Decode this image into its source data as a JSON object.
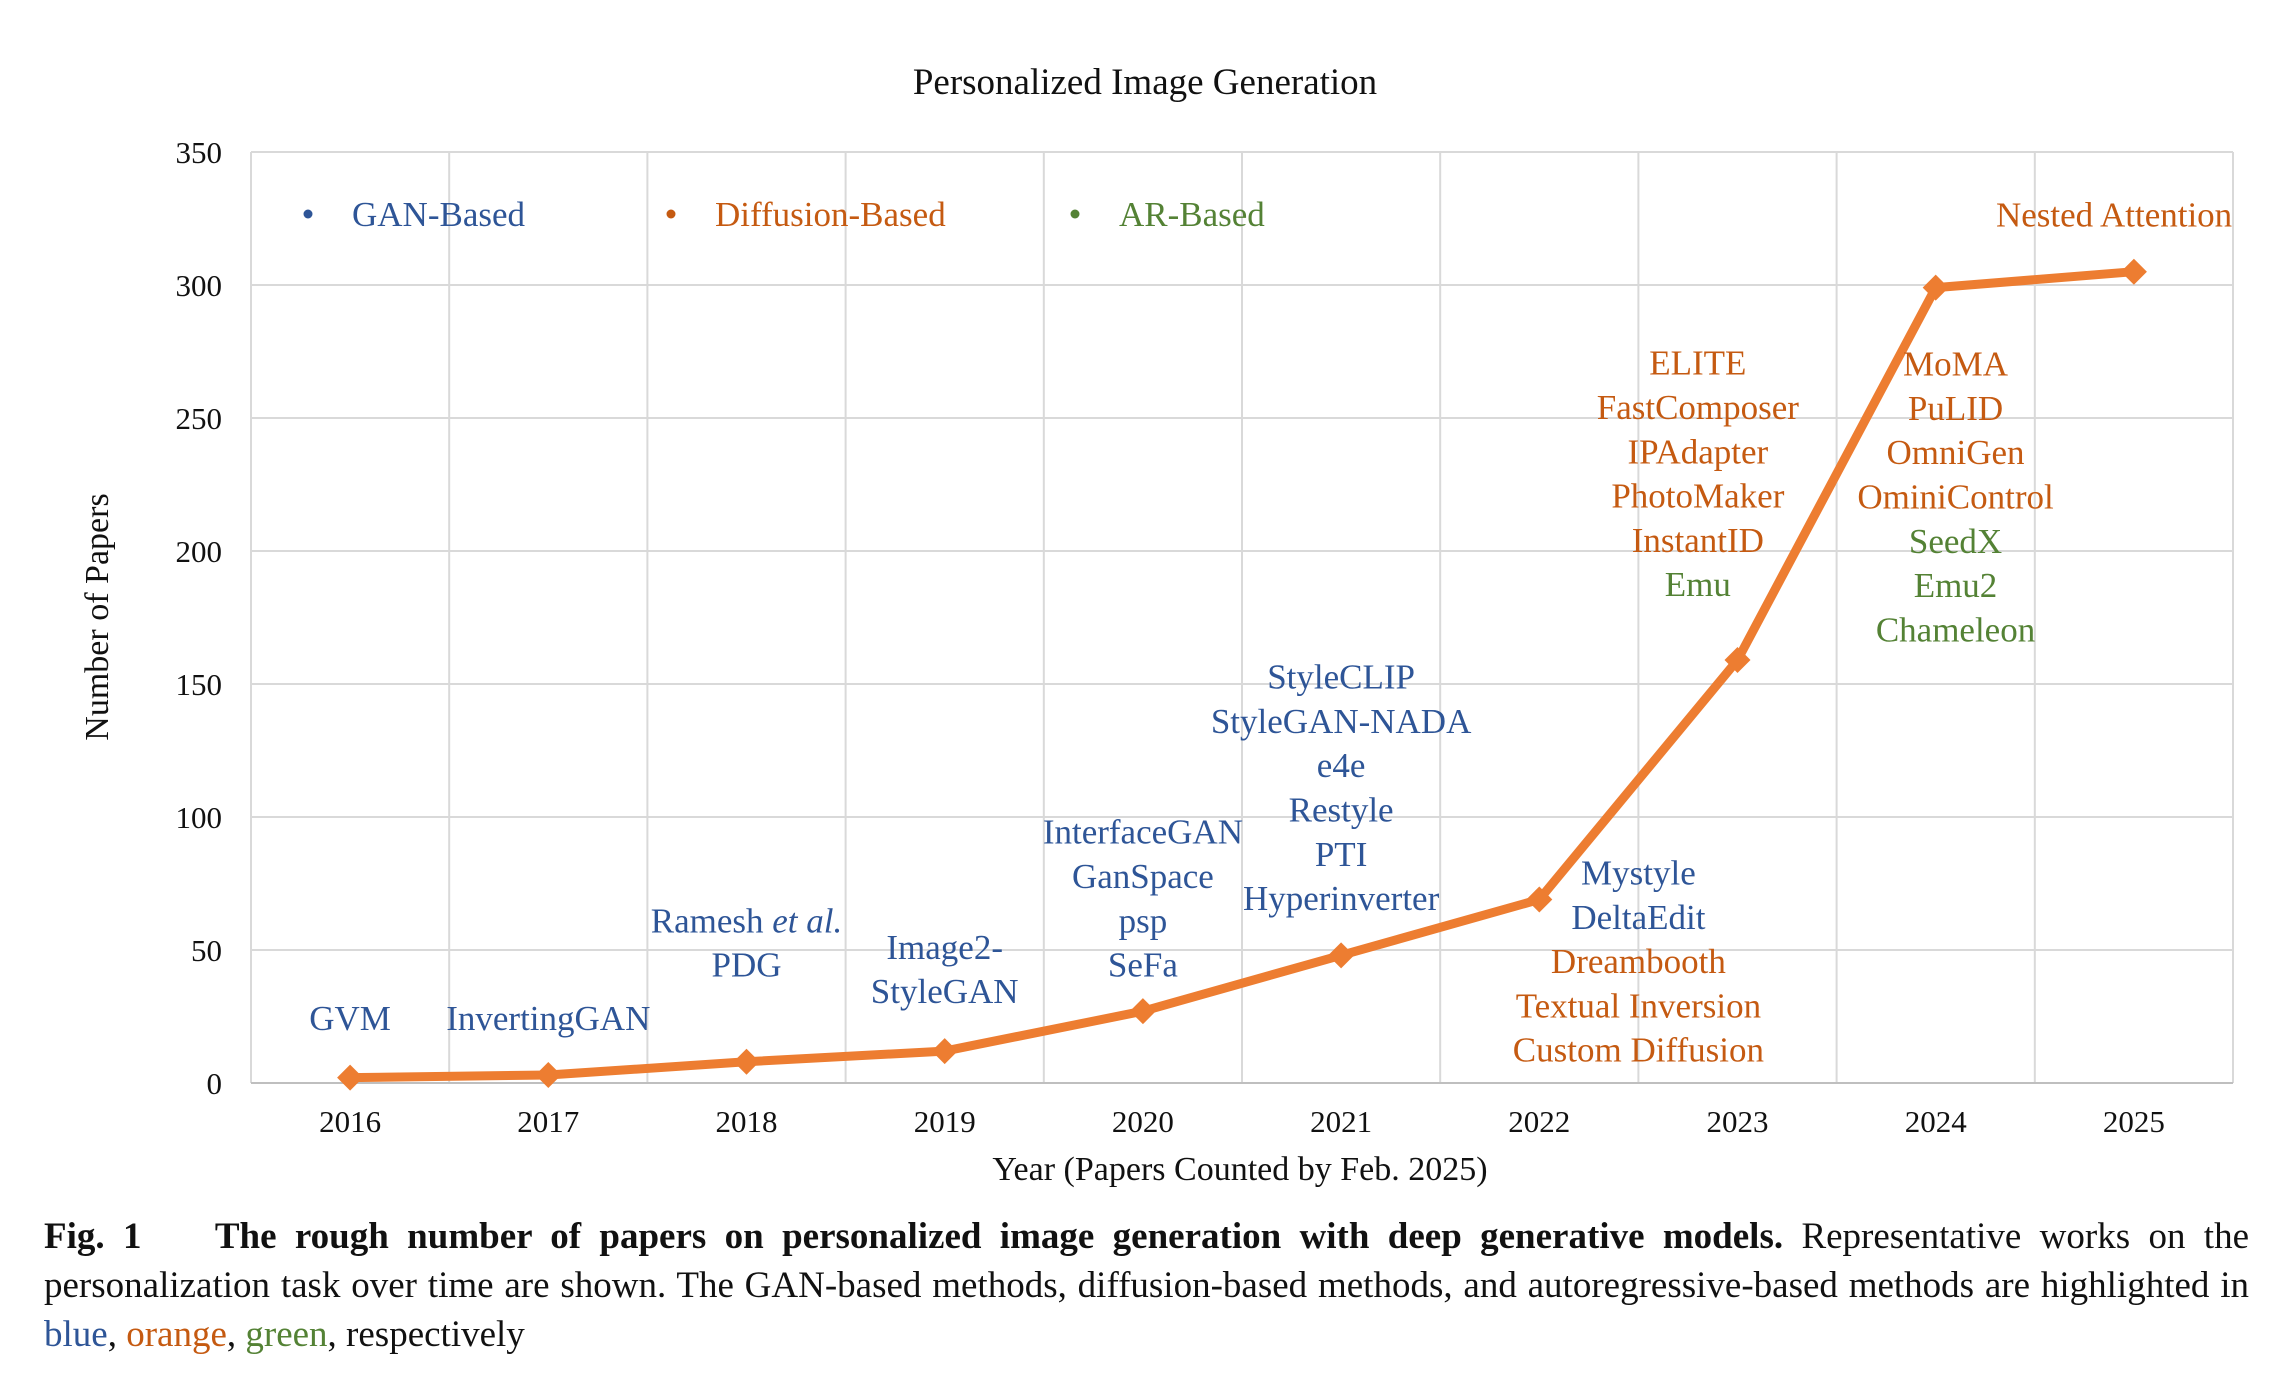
{
  "chart_data": {
    "type": "line",
    "title": "Personalized Image Generation",
    "xlabel": "Year (Papers Counted by Feb. 2025)",
    "ylabel": "Number of Papers",
    "categories": [
      "2016",
      "2017",
      "2018",
      "2019",
      "2020",
      "2021",
      "2022",
      "2023",
      "2024",
      "2025"
    ],
    "values": [
      2,
      3,
      8,
      12,
      27,
      48,
      69,
      159,
      299,
      305
    ],
    "ylim": [
      0,
      350
    ],
    "yticks": [
      0,
      50,
      100,
      150,
      200,
      250,
      300,
      350
    ],
    "grid": true,
    "legend_position": "top-left",
    "legend": [
      {
        "label": "GAN-Based",
        "color": "#2e5597"
      },
      {
        "label": "Diffusion-Based",
        "color": "#c55a11"
      },
      {
        "label": "AR-Based",
        "color": "#548235"
      }
    ],
    "line_color": "#ed7d31",
    "annotations": [
      {
        "year": "2016",
        "level": 20,
        "lines": [
          {
            "text": "GVM",
            "kind": "gan"
          }
        ]
      },
      {
        "year": "2017",
        "level": 20,
        "lines": [
          {
            "text": "InvertingGAN",
            "kind": "gan"
          }
        ]
      },
      {
        "year": "2018",
        "level": 40,
        "lines": [
          {
            "text": "Ramesh ",
            "italic": "et al.",
            "kind": "gan"
          },
          {
            "text": "PDG",
            "kind": "gan"
          }
        ]
      },
      {
        "year": "2019",
        "level": 30,
        "lines": [
          {
            "text": "Image2-",
            "kind": "gan"
          },
          {
            "text": "StyleGAN",
            "kind": "gan"
          }
        ]
      },
      {
        "year": "2020",
        "level": 40,
        "lines": [
          {
            "text": "InterfaceGAN",
            "kind": "gan"
          },
          {
            "text": "GanSpace",
            "kind": "gan"
          },
          {
            "text": "psp",
            "kind": "gan"
          },
          {
            "text": "SeFa",
            "kind": "gan"
          }
        ]
      },
      {
        "year": "2021",
        "level": 65,
        "lines": [
          {
            "text": "StyleCLIP",
            "kind": "gan"
          },
          {
            "text": "StyleGAN-NADA",
            "kind": "gan"
          },
          {
            "text": "e4e",
            "kind": "gan"
          },
          {
            "text": "Restyle",
            "kind": "gan"
          },
          {
            "text": "PTI",
            "kind": "gan"
          },
          {
            "text": "Hyperinverter",
            "kind": "gan"
          }
        ]
      },
      {
        "year": "2022.5",
        "level": 8,
        "lines": [
          {
            "text": "Mystyle",
            "kind": "gan"
          },
          {
            "text": "DeltaEdit",
            "kind": "gan"
          },
          {
            "text": "Dreambooth",
            "kind": "diffusion"
          },
          {
            "text": "Textual Inversion",
            "kind": "diffusion"
          },
          {
            "text": "Custom Diffusion",
            "kind": "diffusion"
          }
        ]
      },
      {
        "year": "2022.8",
        "level": 183,
        "lines": [
          {
            "text": "ELITE",
            "kind": "diffusion"
          },
          {
            "text": "FastComposer",
            "kind": "diffusion"
          },
          {
            "text": "IPAdapter",
            "kind": "diffusion"
          },
          {
            "text": "PhotoMaker",
            "kind": "diffusion"
          },
          {
            "text": "InstantID",
            "kind": "diffusion"
          },
          {
            "text": "Emu",
            "kind": "ar"
          }
        ]
      },
      {
        "year": "2024.1",
        "level": 166,
        "lines": [
          {
            "text": "MoMA",
            "kind": "diffusion"
          },
          {
            "text": "PuLID",
            "kind": "diffusion"
          },
          {
            "text": "OmniGen",
            "kind": "diffusion"
          },
          {
            "text": "OminiControl",
            "kind": "diffusion"
          },
          {
            "text": "SeedX",
            "kind": "ar"
          },
          {
            "text": "Emu2",
            "kind": "ar"
          },
          {
            "text": "Chameleon",
            "kind": "ar"
          }
        ]
      },
      {
        "year": "2024.9",
        "level": 322,
        "lines": [
          {
            "text": "Nested Attention",
            "kind": "diffusion"
          }
        ]
      }
    ]
  },
  "caption": {
    "figure_label": "Fig. 1",
    "bold_title": "The rough number of papers on personalized image generation with deep generative models.",
    "text_before": " Representative works on the personalization task over time are shown. The GAN-based methods, diffusion-based methods, and autoregressive-based methods are highlighted in ",
    "blue_word": "blue",
    "sep1": ", ",
    "orange_word": "orange",
    "sep2": ", ",
    "green_word": "green",
    "text_after": ", respectively"
  }
}
